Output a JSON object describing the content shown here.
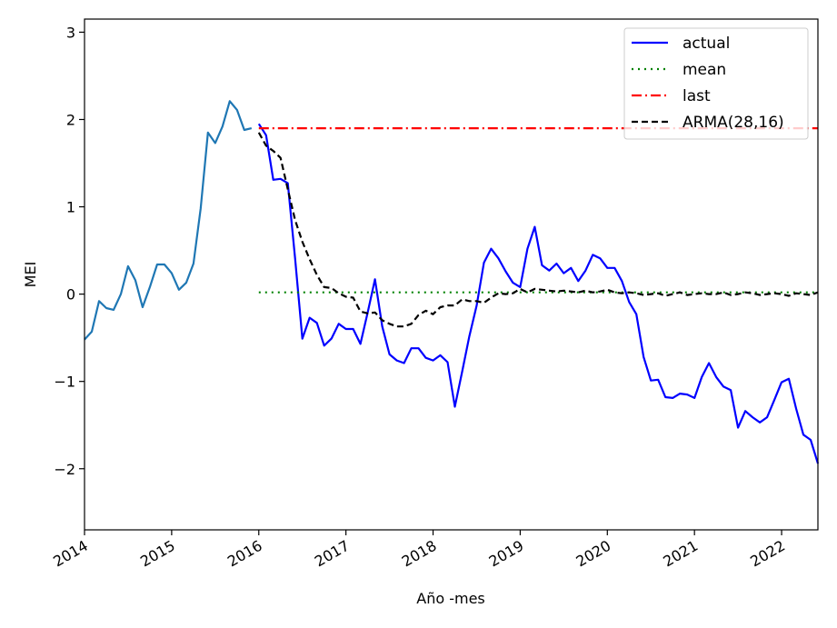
{
  "chart_data": {
    "type": "line",
    "xlabel": "Año -mes",
    "ylabel": "MEI",
    "xlim": [
      "2014-01",
      "2022-06"
    ],
    "ylim": [
      -2.7,
      3.15
    ],
    "x_ticks": [
      "2014",
      "2015",
      "2016",
      "2017",
      "2018",
      "2019",
      "2020",
      "2021",
      "2022"
    ],
    "y_ticks": [
      -2,
      -1,
      0,
      1,
      2,
      3
    ],
    "y_tick_labels": [
      "−2",
      "−1",
      "0",
      "1",
      "2",
      "3"
    ],
    "legend_position": "top-right",
    "grid": false,
    "history": {
      "color": "#1f77b4",
      "x": [
        "2014-01",
        "2014-02",
        "2014-03",
        "2014-04",
        "2014-05",
        "2014-06",
        "2014-07",
        "2014-08",
        "2014-09",
        "2014-10",
        "2014-11",
        "2014-12",
        "2015-01",
        "2015-02",
        "2015-03",
        "2015-04",
        "2015-05",
        "2015-06",
        "2015-07",
        "2015-08",
        "2015-09",
        "2015-10",
        "2015-11",
        "2015-12"
      ],
      "y": [
        -0.52,
        -0.43,
        -0.08,
        -0.16,
        -0.18,
        0.0,
        0.32,
        0.16,
        -0.15,
        0.08,
        0.34,
        0.34,
        0.24,
        0.05,
        0.13,
        0.35,
        0.98,
        1.85,
        1.73,
        1.92,
        2.21,
        2.11,
        1.88,
        1.9
      ]
    },
    "series": [
      {
        "name": "actual",
        "color": "#0000ff",
        "style": "solid",
        "x": [
          "2016-01",
          "2016-02",
          "2016-03",
          "2016-04",
          "2016-05",
          "2016-06",
          "2016-07",
          "2016-08",
          "2016-09",
          "2016-10",
          "2016-11",
          "2016-12",
          "2017-01",
          "2017-02",
          "2017-03",
          "2017-04",
          "2017-05",
          "2017-06",
          "2017-07",
          "2017-08",
          "2017-09",
          "2017-10",
          "2017-11",
          "2017-12",
          "2018-01",
          "2018-02",
          "2018-03",
          "2018-04",
          "2018-05",
          "2018-06",
          "2018-07",
          "2018-08",
          "2018-09",
          "2018-10",
          "2018-11",
          "2018-12",
          "2019-01",
          "2019-02",
          "2019-03",
          "2019-04",
          "2019-05",
          "2019-06",
          "2019-07",
          "2019-08",
          "2019-09",
          "2019-10",
          "2019-11",
          "2019-12",
          "2020-01",
          "2020-02",
          "2020-03",
          "2020-04",
          "2020-05",
          "2020-06",
          "2020-07",
          "2020-08",
          "2020-09",
          "2020-10",
          "2020-11",
          "2020-12",
          "2021-01",
          "2021-02",
          "2021-03",
          "2021-04",
          "2021-05",
          "2021-06",
          "2021-07",
          "2021-08",
          "2021-09",
          "2021-10",
          "2021-11",
          "2021-12",
          "2022-01",
          "2022-02",
          "2022-03",
          "2022-04",
          "2022-05",
          "2022-06"
        ],
        "y": [
          1.95,
          1.82,
          1.31,
          1.32,
          1.27,
          0.41,
          -0.51,
          -0.27,
          -0.33,
          -0.59,
          -0.51,
          -0.34,
          -0.4,
          -0.4,
          -0.57,
          -0.21,
          0.17,
          -0.37,
          -0.69,
          -0.76,
          -0.79,
          -0.62,
          -0.62,
          -0.73,
          -0.76,
          -0.7,
          -0.78,
          -1.29,
          -0.89,
          -0.48,
          -0.13,
          0.36,
          0.52,
          0.41,
          0.26,
          0.13,
          0.08,
          0.52,
          0.77,
          0.33,
          0.27,
          0.35,
          0.24,
          0.3,
          0.15,
          0.27,
          0.45,
          0.41,
          0.3,
          0.3,
          0.15,
          -0.09,
          -0.23,
          -0.72,
          -0.99,
          -0.98,
          -1.18,
          -1.19,
          -1.14,
          -1.15,
          -1.19,
          -0.95,
          -0.79,
          -0.95,
          -1.06,
          -1.1,
          -1.53,
          -1.34,
          -1.41,
          -1.47,
          -1.41,
          -1.21,
          -1.01,
          -0.97,
          -1.31,
          -1.61,
          -1.67,
          -1.94
        ]
      },
      {
        "name": "mean",
        "color": "#008000",
        "style": "dotted",
        "x": [
          "2016-01",
          "2022-06"
        ],
        "y": [
          0.02,
          0.02
        ]
      },
      {
        "name": "last",
        "color": "#ff0000",
        "style": "dashdot",
        "x": [
          "2016-01",
          "2022-06"
        ],
        "y": [
          1.9,
          1.9
        ]
      },
      {
        "name": "ARMA(28,16)",
        "color": "#000000",
        "style": "dashed",
        "x": [
          "2016-01",
          "2016-02",
          "2016-03",
          "2016-04",
          "2016-05",
          "2016-06",
          "2016-07",
          "2016-08",
          "2016-09",
          "2016-10",
          "2016-11",
          "2016-12",
          "2017-01",
          "2017-02",
          "2017-03",
          "2017-04",
          "2017-05",
          "2017-06",
          "2017-07",
          "2017-08",
          "2017-09",
          "2017-10",
          "2017-11",
          "2017-12",
          "2018-01",
          "2018-02",
          "2018-03",
          "2018-04",
          "2018-05",
          "2018-06",
          "2018-07",
          "2018-08",
          "2018-09",
          "2018-10",
          "2018-11",
          "2018-12",
          "2019-01",
          "2019-02",
          "2019-03",
          "2019-04",
          "2019-05",
          "2019-06",
          "2019-07",
          "2019-08",
          "2019-09",
          "2019-10",
          "2019-11",
          "2019-12",
          "2020-01",
          "2020-02",
          "2020-03",
          "2020-04",
          "2020-05",
          "2020-06",
          "2020-07",
          "2020-08",
          "2020-09",
          "2020-10",
          "2020-11",
          "2020-12",
          "2021-01",
          "2021-02",
          "2021-03",
          "2021-04",
          "2021-05",
          "2021-06",
          "2021-07",
          "2021-08",
          "2021-09",
          "2021-10",
          "2021-11",
          "2021-12",
          "2022-01",
          "2022-02",
          "2022-03",
          "2022-04",
          "2022-05",
          "2022-06"
        ],
        "y": [
          1.85,
          1.7,
          1.64,
          1.56,
          1.2,
          0.85,
          0.6,
          0.4,
          0.22,
          0.08,
          0.07,
          0.01,
          -0.03,
          -0.04,
          -0.2,
          -0.22,
          -0.21,
          -0.3,
          -0.34,
          -0.37,
          -0.37,
          -0.34,
          -0.24,
          -0.19,
          -0.23,
          -0.15,
          -0.13,
          -0.13,
          -0.06,
          -0.08,
          -0.08,
          -0.1,
          -0.04,
          0.01,
          0.0,
          0.01,
          0.06,
          0.02,
          0.06,
          0.05,
          0.04,
          0.03,
          0.04,
          0.03,
          0.02,
          0.04,
          0.02,
          0.03,
          0.05,
          0.02,
          0.01,
          0.02,
          0.01,
          -0.01,
          0.0,
          0.01,
          -0.02,
          0.0,
          0.02,
          -0.01,
          0.0,
          0.01,
          0.0,
          0.0,
          0.02,
          -0.01,
          0.0,
          0.02,
          0.01,
          -0.01,
          0.0,
          0.01,
          0.0,
          -0.02,
          0.01,
          0.0,
          -0.01,
          0.02
        ]
      }
    ]
  }
}
